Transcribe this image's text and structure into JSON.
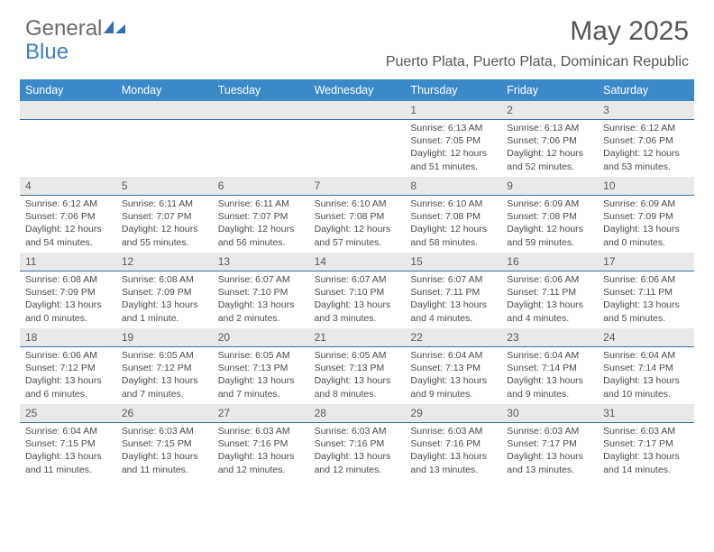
{
  "logo": {
    "text1": "General",
    "text2": "Blue"
  },
  "title": "May 2025",
  "location": "Puerto Plata, Puerto Plata, Dominican Republic",
  "dow": [
    "Sunday",
    "Monday",
    "Tuesday",
    "Wednesday",
    "Thursday",
    "Friday",
    "Saturday"
  ],
  "colors": {
    "header_band": "#3b89c9",
    "gray_band": "#e9e9e9",
    "divider": "#3b6fa8",
    "logo_blue": "#3b7fc4"
  },
  "weeks": [
    {
      "nums": [
        "",
        "",
        "",
        "",
        "1",
        "2",
        "3"
      ],
      "cells": [
        null,
        null,
        null,
        null,
        {
          "sr": "Sunrise: 6:13 AM",
          "ss": "Sunset: 7:05 PM",
          "d1": "Daylight: 12 hours",
          "d2": "and 51 minutes."
        },
        {
          "sr": "Sunrise: 6:13 AM",
          "ss": "Sunset: 7:06 PM",
          "d1": "Daylight: 12 hours",
          "d2": "and 52 minutes."
        },
        {
          "sr": "Sunrise: 6:12 AM",
          "ss": "Sunset: 7:06 PM",
          "d1": "Daylight: 12 hours",
          "d2": "and 53 minutes."
        }
      ]
    },
    {
      "nums": [
        "4",
        "5",
        "6",
        "7",
        "8",
        "9",
        "10"
      ],
      "cells": [
        {
          "sr": "Sunrise: 6:12 AM",
          "ss": "Sunset: 7:06 PM",
          "d1": "Daylight: 12 hours",
          "d2": "and 54 minutes."
        },
        {
          "sr": "Sunrise: 6:11 AM",
          "ss": "Sunset: 7:07 PM",
          "d1": "Daylight: 12 hours",
          "d2": "and 55 minutes."
        },
        {
          "sr": "Sunrise: 6:11 AM",
          "ss": "Sunset: 7:07 PM",
          "d1": "Daylight: 12 hours",
          "d2": "and 56 minutes."
        },
        {
          "sr": "Sunrise: 6:10 AM",
          "ss": "Sunset: 7:08 PM",
          "d1": "Daylight: 12 hours",
          "d2": "and 57 minutes."
        },
        {
          "sr": "Sunrise: 6:10 AM",
          "ss": "Sunset: 7:08 PM",
          "d1": "Daylight: 12 hours",
          "d2": "and 58 minutes."
        },
        {
          "sr": "Sunrise: 6:09 AM",
          "ss": "Sunset: 7:08 PM",
          "d1": "Daylight: 12 hours",
          "d2": "and 59 minutes."
        },
        {
          "sr": "Sunrise: 6:09 AM",
          "ss": "Sunset: 7:09 PM",
          "d1": "Daylight: 13 hours",
          "d2": "and 0 minutes."
        }
      ]
    },
    {
      "nums": [
        "11",
        "12",
        "13",
        "14",
        "15",
        "16",
        "17"
      ],
      "cells": [
        {
          "sr": "Sunrise: 6:08 AM",
          "ss": "Sunset: 7:09 PM",
          "d1": "Daylight: 13 hours",
          "d2": "and 0 minutes."
        },
        {
          "sr": "Sunrise: 6:08 AM",
          "ss": "Sunset: 7:09 PM",
          "d1": "Daylight: 13 hours",
          "d2": "and 1 minute."
        },
        {
          "sr": "Sunrise: 6:07 AM",
          "ss": "Sunset: 7:10 PM",
          "d1": "Daylight: 13 hours",
          "d2": "and 2 minutes."
        },
        {
          "sr": "Sunrise: 6:07 AM",
          "ss": "Sunset: 7:10 PM",
          "d1": "Daylight: 13 hours",
          "d2": "and 3 minutes."
        },
        {
          "sr": "Sunrise: 6:07 AM",
          "ss": "Sunset: 7:11 PM",
          "d1": "Daylight: 13 hours",
          "d2": "and 4 minutes."
        },
        {
          "sr": "Sunrise: 6:06 AM",
          "ss": "Sunset: 7:11 PM",
          "d1": "Daylight: 13 hours",
          "d2": "and 4 minutes."
        },
        {
          "sr": "Sunrise: 6:06 AM",
          "ss": "Sunset: 7:11 PM",
          "d1": "Daylight: 13 hours",
          "d2": "and 5 minutes."
        }
      ]
    },
    {
      "nums": [
        "18",
        "19",
        "20",
        "21",
        "22",
        "23",
        "24"
      ],
      "cells": [
        {
          "sr": "Sunrise: 6:06 AM",
          "ss": "Sunset: 7:12 PM",
          "d1": "Daylight: 13 hours",
          "d2": "and 6 minutes."
        },
        {
          "sr": "Sunrise: 6:05 AM",
          "ss": "Sunset: 7:12 PM",
          "d1": "Daylight: 13 hours",
          "d2": "and 7 minutes."
        },
        {
          "sr": "Sunrise: 6:05 AM",
          "ss": "Sunset: 7:13 PM",
          "d1": "Daylight: 13 hours",
          "d2": "and 7 minutes."
        },
        {
          "sr": "Sunrise: 6:05 AM",
          "ss": "Sunset: 7:13 PM",
          "d1": "Daylight: 13 hours",
          "d2": "and 8 minutes."
        },
        {
          "sr": "Sunrise: 6:04 AM",
          "ss": "Sunset: 7:13 PM",
          "d1": "Daylight: 13 hours",
          "d2": "and 9 minutes."
        },
        {
          "sr": "Sunrise: 6:04 AM",
          "ss": "Sunset: 7:14 PM",
          "d1": "Daylight: 13 hours",
          "d2": "and 9 minutes."
        },
        {
          "sr": "Sunrise: 6:04 AM",
          "ss": "Sunset: 7:14 PM",
          "d1": "Daylight: 13 hours",
          "d2": "and 10 minutes."
        }
      ]
    },
    {
      "nums": [
        "25",
        "26",
        "27",
        "28",
        "29",
        "30",
        "31"
      ],
      "cells": [
        {
          "sr": "Sunrise: 6:04 AM",
          "ss": "Sunset: 7:15 PM",
          "d1": "Daylight: 13 hours",
          "d2": "and 11 minutes."
        },
        {
          "sr": "Sunrise: 6:03 AM",
          "ss": "Sunset: 7:15 PM",
          "d1": "Daylight: 13 hours",
          "d2": "and 11 minutes."
        },
        {
          "sr": "Sunrise: 6:03 AM",
          "ss": "Sunset: 7:16 PM",
          "d1": "Daylight: 13 hours",
          "d2": "and 12 minutes."
        },
        {
          "sr": "Sunrise: 6:03 AM",
          "ss": "Sunset: 7:16 PM",
          "d1": "Daylight: 13 hours",
          "d2": "and 12 minutes."
        },
        {
          "sr": "Sunrise: 6:03 AM",
          "ss": "Sunset: 7:16 PM",
          "d1": "Daylight: 13 hours",
          "d2": "and 13 minutes."
        },
        {
          "sr": "Sunrise: 6:03 AM",
          "ss": "Sunset: 7:17 PM",
          "d1": "Daylight: 13 hours",
          "d2": "and 13 minutes."
        },
        {
          "sr": "Sunrise: 6:03 AM",
          "ss": "Sunset: 7:17 PM",
          "d1": "Daylight: 13 hours",
          "d2": "and 14 minutes."
        }
      ]
    }
  ]
}
